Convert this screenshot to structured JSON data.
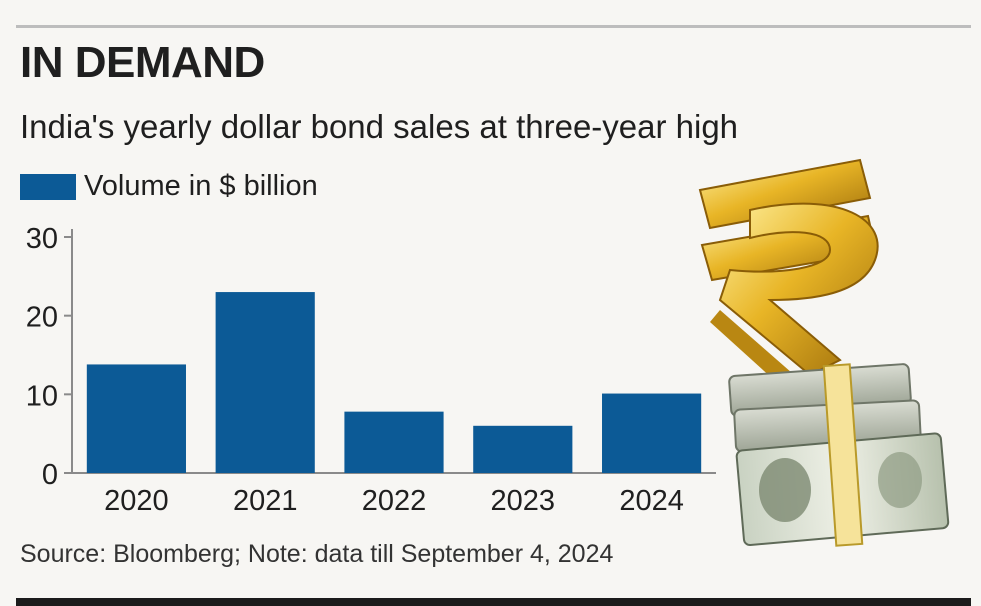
{
  "header": {
    "title": "IN DEMAND",
    "subtitle": "India's yearly dollar bond sales at three-year high"
  },
  "legend": {
    "label": "Volume in $ billion"
  },
  "source": "Source: Bloomberg; Note: data till September 4, 2024",
  "colors": {
    "bar": "#0c5a96",
    "axis": "#8a8a8a",
    "text": "#1f1f1f"
  },
  "decoration": {
    "icons": [
      "rupee-symbol-icon",
      "dollar-bundle-icon"
    ]
  },
  "chart_data": {
    "type": "bar",
    "categories": [
      "2020",
      "2021",
      "2022",
      "2023",
      "2024"
    ],
    "series": [
      {
        "name": "Volume in $ billion",
        "values": [
          13.8,
          23,
          7.8,
          6,
          10.1
        ]
      }
    ],
    "ylim": [
      0,
      30
    ],
    "yticks": [
      0,
      10,
      20,
      30
    ],
    "grid": false,
    "legend_position": "top-left"
  }
}
